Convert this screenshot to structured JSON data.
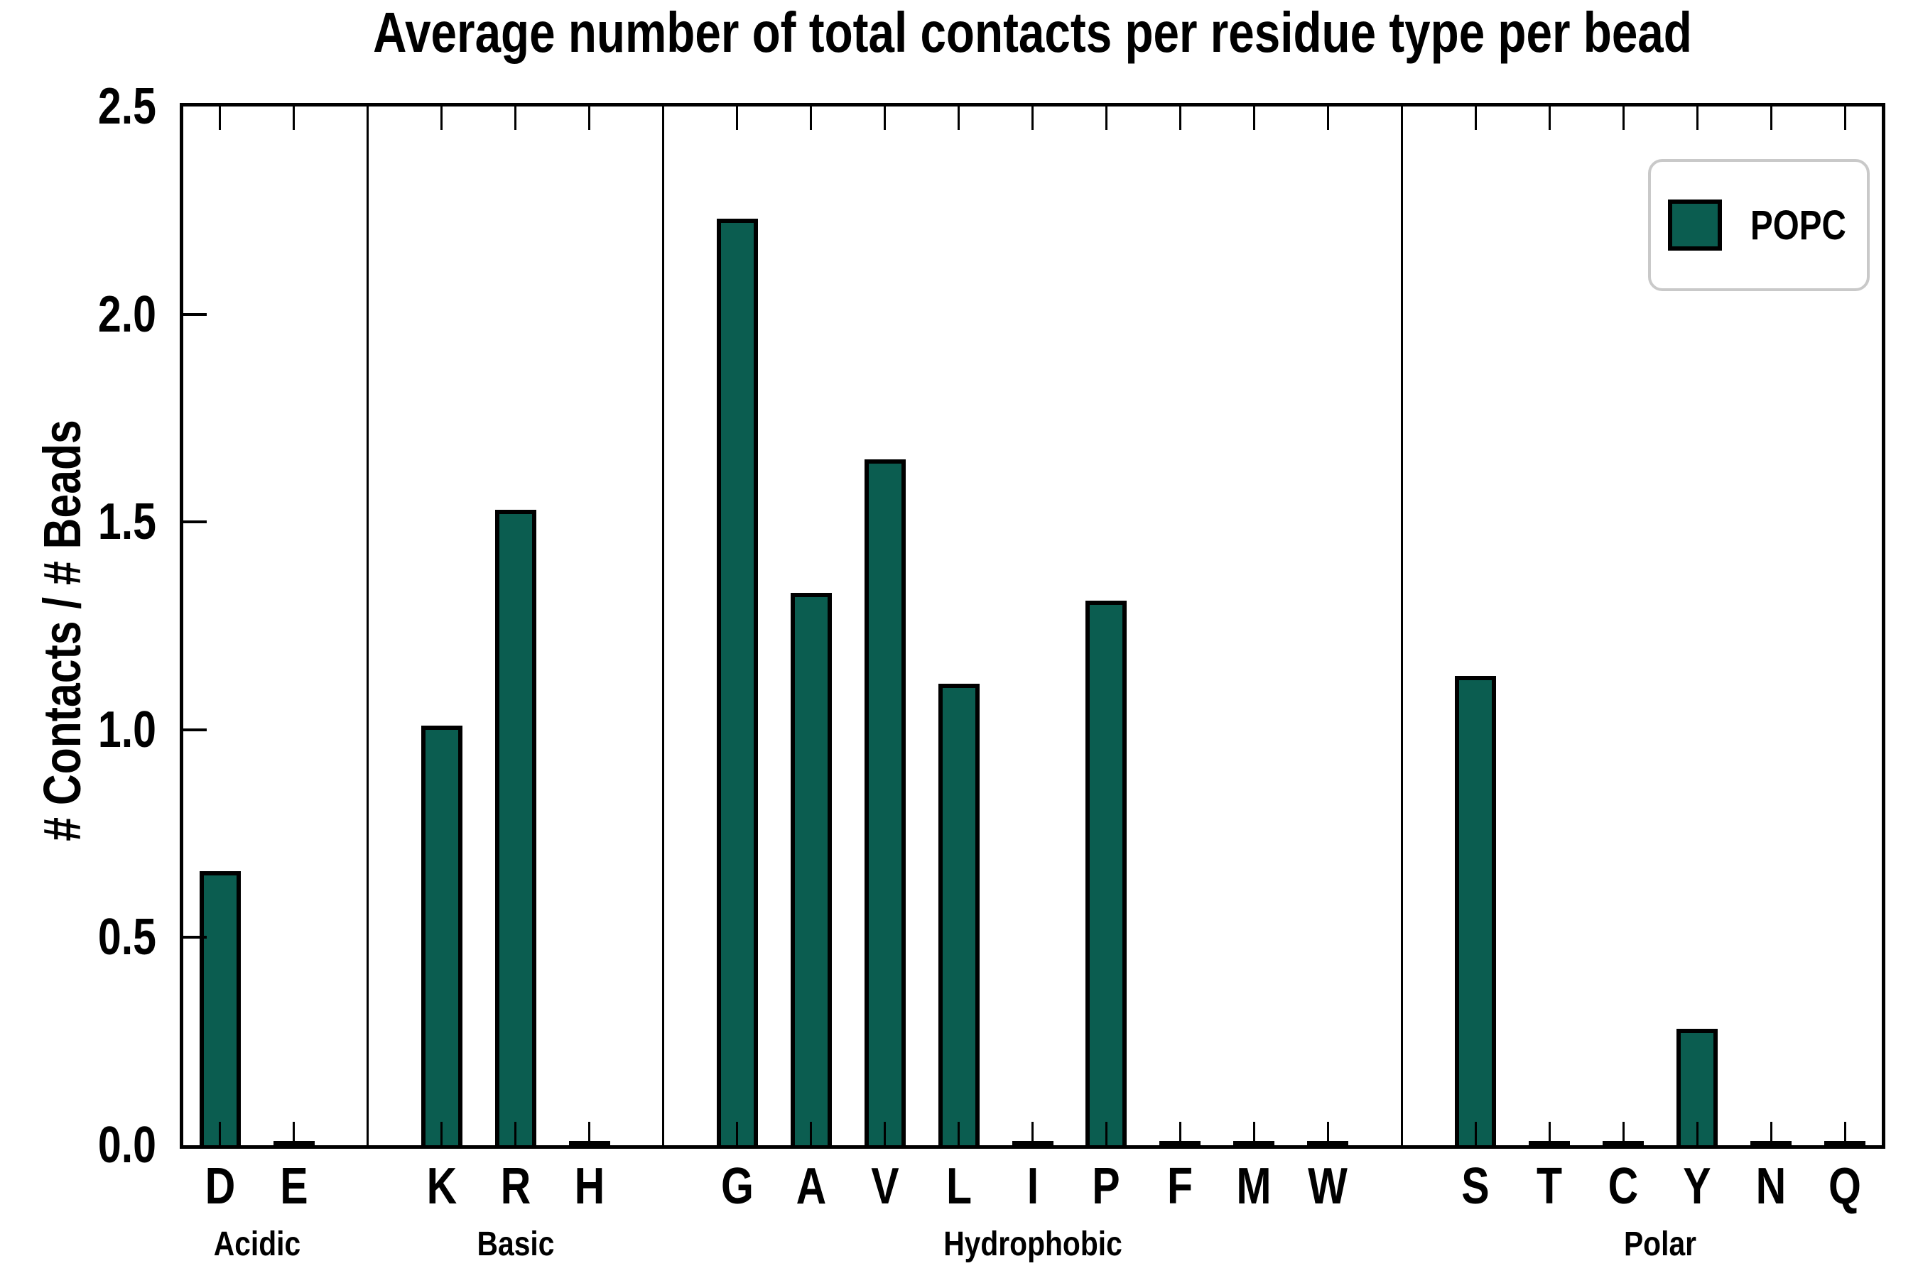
{
  "chart_data": {
    "type": "bar",
    "title": "Average number of total contacts per residue type per bead",
    "ylabel": "# Contacts / # Beads",
    "ylim": [
      0,
      2.5
    ],
    "yticks": [
      "0.0",
      "0.5",
      "1.0",
      "1.5",
      "2.0",
      "2.5"
    ],
    "grid": false,
    "categories": [
      "D",
      "E",
      "K",
      "R",
      "H",
      "G",
      "A",
      "V",
      "L",
      "I",
      "P",
      "F",
      "M",
      "W",
      "S",
      "T",
      "C",
      "Y",
      "N",
      "Q"
    ],
    "values": [
      0.66,
      0.01,
      1.01,
      1.53,
      0.01,
      2.23,
      1.33,
      1.65,
      1.11,
      0.01,
      1.31,
      0.01,
      0.01,
      0.01,
      1.13,
      0.01,
      0.01,
      0.28,
      0.01,
      0.01
    ],
    "slot_index": [
      0,
      1,
      3,
      4,
      5,
      7,
      8,
      9,
      10,
      11,
      12,
      13,
      14,
      15,
      17,
      18,
      19,
      20,
      21,
      22
    ],
    "total_slots": 23,
    "group_dividers_at_slots": [
      2,
      6,
      16
    ],
    "groups": [
      {
        "label": "Acidic",
        "center_slot": 0.5
      },
      {
        "label": "Basic",
        "center_slot": 4
      },
      {
        "label": "Hydrophobic",
        "center_slot": 11
      },
      {
        "label": "Polar",
        "center_slot": 19.5
      }
    ],
    "legend": {
      "position": "upper right",
      "entries": [
        {
          "label": "POPC",
          "color": "#0b5d50"
        }
      ]
    },
    "bar_color": "#0b5d50",
    "bar_edge_color": "#000000"
  }
}
